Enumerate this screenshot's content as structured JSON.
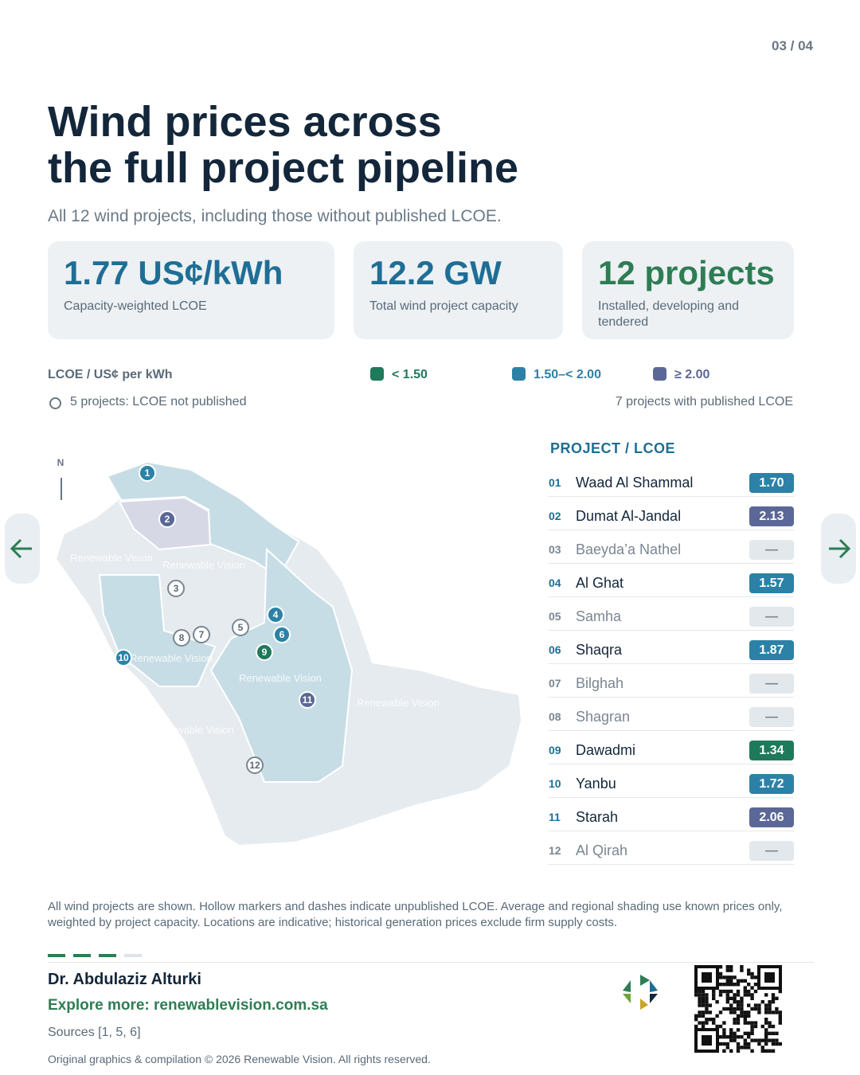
{
  "page_number": "03 / 04",
  "title_lines": [
    "Wind prices across",
    "the full project pipeline"
  ],
  "subtitle": "All 12 wind projects, including those without published LCOE.",
  "stats": [
    {
      "value": "1.77 US¢/kWh",
      "label": "Capacity-weighted LCOE",
      "color": "#1f6e95"
    },
    {
      "value": "12.2 GW",
      "label": "Total wind project capacity",
      "color": "#1f6e95"
    },
    {
      "value": "12 projects",
      "label": "Installed, developing and tendered",
      "color": "#2e7d54"
    }
  ],
  "legend": {
    "title": "LCOE / US¢ per kWh",
    "items": [
      {
        "label": "< 1.50",
        "color": "#1e7a5a"
      },
      {
        "label": "1.50–< 2.00",
        "color": "#2b82a6"
      },
      {
        "label": "≥ 2.00",
        "color": "#5b6796"
      }
    ],
    "hollow_note": "5 projects: LCOE not published",
    "published_note": "7 projects with published LCOE"
  },
  "map": {
    "north": "N",
    "watermarks": [
      "Renewable Vision",
      "Renewable Vision",
      "Renewable Vision",
      "Renewable Vision",
      "Renewable Vision",
      "Renewable Vision"
    ]
  },
  "list_title": "PROJECT / LCOE",
  "projects": [
    {
      "num": "01",
      "name": "Waad Al Shammal",
      "lcoe": "1.70",
      "marker": "1",
      "color": "#2b82a6"
    },
    {
      "num": "02",
      "name": "Dumat Al-Jandal",
      "lcoe": "2.13",
      "marker": "2",
      "color": "#5b6796"
    },
    {
      "num": "03",
      "name": "Baeyda’a Nathel",
      "lcoe": "—",
      "marker": "3"
    },
    {
      "num": "04",
      "name": "Al Ghat",
      "lcoe": "1.57",
      "marker": "4",
      "color": "#2b82a6"
    },
    {
      "num": "05",
      "name": "Samha",
      "lcoe": "—",
      "marker": "5"
    },
    {
      "num": "06",
      "name": "Shaqra",
      "lcoe": "1.87",
      "marker": "6",
      "color": "#2b82a6"
    },
    {
      "num": "07",
      "name": "Bilghah",
      "lcoe": "—",
      "marker": "7"
    },
    {
      "num": "08",
      "name": "Shagran",
      "lcoe": "—",
      "marker": "8"
    },
    {
      "num": "09",
      "name": "Dawadmi",
      "lcoe": "1.34",
      "marker": "9",
      "color": "#1e7a5a"
    },
    {
      "num": "10",
      "name": "Yanbu",
      "lcoe": "1.72",
      "marker": "10",
      "color": "#2b82a6"
    },
    {
      "num": "11",
      "name": "Starah",
      "lcoe": "2.06",
      "marker": "11",
      "color": "#5b6796"
    },
    {
      "num": "12",
      "name": "Al Qirah",
      "lcoe": "—",
      "marker": "12"
    }
  ],
  "footnote": "All wind projects are shown. Hollow markers and dashes indicate unpublished LCOE. Average and regional shading use known prices only, weighted by project capacity. Locations are indicative; historical generation prices exclude firm supply costs.",
  "author": "Dr. Abdulaziz Alturki",
  "link": "Explore more: renewablevision.com.sa",
  "sources": "Sources [1, 5, 6]",
  "copyright": "Original graphics & compilation © 2026 Renewable Vision. All rights reserved."
}
